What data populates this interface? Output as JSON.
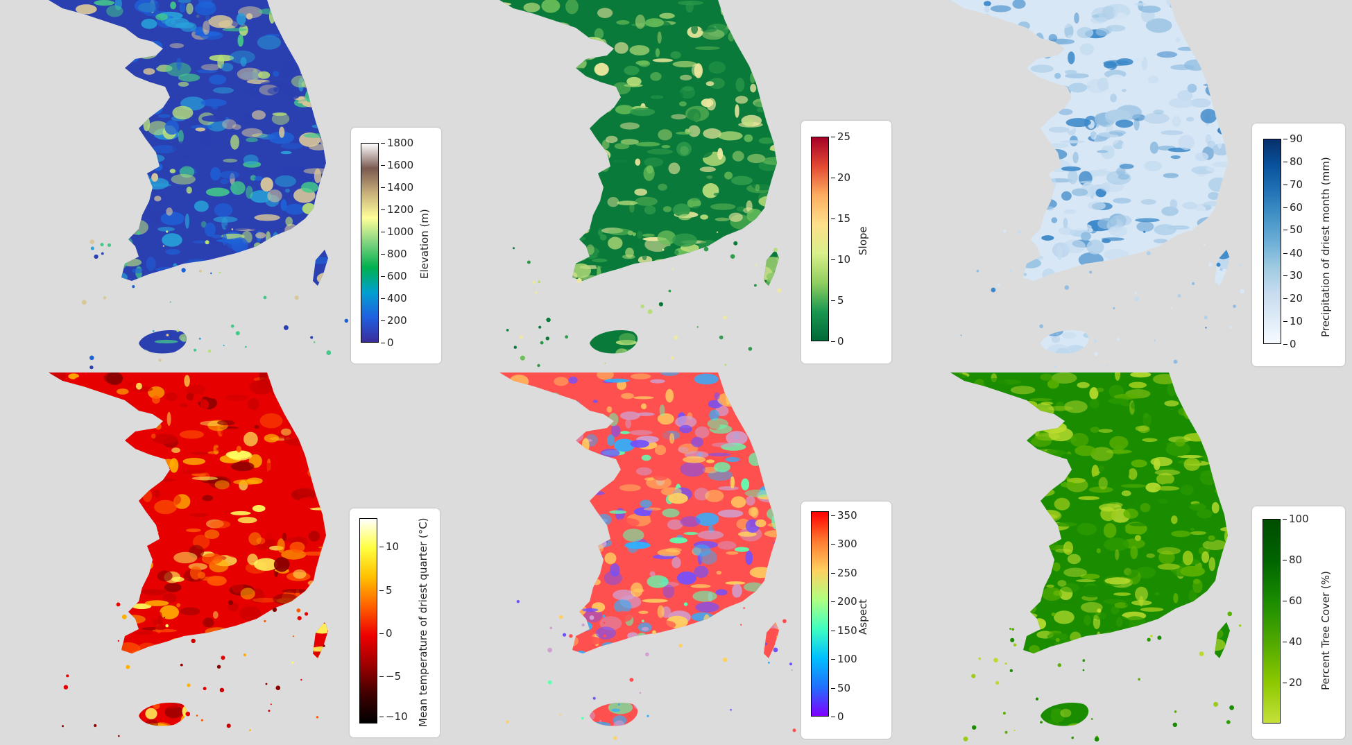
{
  "panels": [
    {
      "id": "elevation",
      "label": "Elevation (m)",
      "ticks": [
        "1800",
        "1600",
        "1400",
        "1200",
        "1000",
        "800",
        "600",
        "400",
        "200",
        "0"
      ],
      "gradient": [
        "#ffffff",
        "#7a5a50",
        "#c8b07a",
        "#ffff99",
        "#7fd37f",
        "#00b04f",
        "#00a0d0",
        "#2060e0",
        "#3a2d9c"
      ],
      "map_colors": [
        "#2a3fb0",
        "#1e62d8",
        "#28a0d8",
        "#44c88a",
        "#b8e07a",
        "#d9c79a"
      ]
    },
    {
      "id": "slope",
      "label": "Slope",
      "ticks": [
        "25",
        "20",
        "15",
        "10",
        "5",
        "0"
      ],
      "gradient": [
        "#a50026",
        "#e34a33",
        "#fdae61",
        "#fee08b",
        "#d9ef8b",
        "#91cf60",
        "#1a9850",
        "#006837"
      ],
      "map_colors": [
        "#0a7a3a",
        "#2e9a4a",
        "#6cbf5a",
        "#b7dd7a",
        "#efe9a0"
      ]
    },
    {
      "id": "precipitation",
      "label": "Precipitation of driest month (mm)",
      "ticks": [
        "90",
        "80",
        "70",
        "60",
        "50",
        "40",
        "30",
        "20",
        "10",
        "0"
      ],
      "gradient": [
        "#08306b",
        "#08519c",
        "#2171b5",
        "#4292c6",
        "#6baed6",
        "#9ecae1",
        "#c6dbef",
        "#deebf7",
        "#f7fbff"
      ],
      "map_colors": [
        "#d8e7f5",
        "#c5dcf0",
        "#b0d0ea",
        "#8fbce0",
        "#3a87c8"
      ]
    },
    {
      "id": "temperature",
      "label": "Mean temperature of driest quarter (°C)",
      "ticks": [
        "10",
        "5",
        "0",
        "−5",
        "−10"
      ],
      "gradient": [
        "#ffffff",
        "#ffff40",
        "#ffc000",
        "#ff6000",
        "#ee0000",
        "#a00000",
        "#400000",
        "#000000"
      ],
      "map_colors": [
        "#e60000",
        "#cc0000",
        "#8a0000",
        "#ff5a00",
        "#ffb000",
        "#ffff60"
      ]
    },
    {
      "id": "aspect",
      "label": "Aspect",
      "ticks": [
        "350",
        "300",
        "250",
        "200",
        "150",
        "100",
        "50",
        "0"
      ],
      "gradient": [
        "#ff0000",
        "#ff7a30",
        "#ffd060",
        "#b0ff80",
        "#40ffc0",
        "#00c0ff",
        "#2070ff",
        "#8000ff"
      ],
      "map_colors": [
        "#ff5050",
        "#ffd060",
        "#60ffb0",
        "#30b0ff",
        "#7050ff",
        "#d0a0d0"
      ]
    },
    {
      "id": "tree_cover",
      "label": "Percent Tree Cover (%)",
      "ticks": [
        "100",
        "80",
        "60",
        "40",
        "20"
      ],
      "gradient": [
        "#004d00",
        "#006400",
        "#1a8c00",
        "#4fa800",
        "#8cc800",
        "#c5e03a"
      ],
      "map_colors": [
        "#1a8c00",
        "#2c9a00",
        "#5ab000",
        "#9ccc1a",
        "#b9dc2e"
      ]
    }
  ]
}
